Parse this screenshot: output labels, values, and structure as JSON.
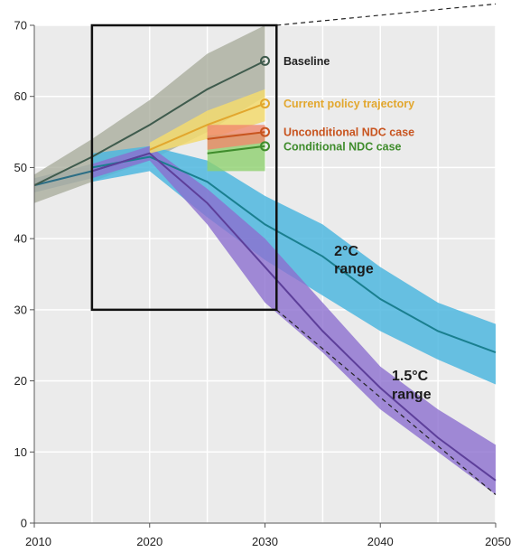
{
  "chart_data": {
    "type": "line",
    "title": "",
    "xlabel": "",
    "ylabel": "",
    "xlim": [
      2010,
      2050
    ],
    "ylim": [
      0,
      70
    ],
    "x_ticks": [
      2010,
      2020,
      2030,
      2040,
      2050
    ],
    "y_ticks": [
      0,
      10,
      20,
      30,
      40,
      50,
      60,
      70
    ],
    "x_grid": [
      2010,
      2015,
      2020,
      2025,
      2030,
      2035,
      2040,
      2045,
      2050
    ],
    "grid": true,
    "colors": {
      "baseline": "#3f5b4d",
      "baseline_band": "#a5aa98",
      "current_policy": "#e2a72e",
      "current_policy_band": "#f3db6e",
      "unconditional": "#c8541f",
      "unconditional_band": "#f08a6e",
      "conditional": "#3f8c2c",
      "conditional_band": "#8fd16f",
      "two_c": "#1a7f8f",
      "two_c_band": "#4fb7df",
      "one_five_c": "#5d3f9a",
      "one_five_c_band": "#8c6fd0",
      "history": "#2c6e85",
      "history_band": "#8fa9c4"
    },
    "historical": {
      "x": [
        2010,
        2015,
        2020
      ],
      "values": [
        47.5,
        49.5,
        52
      ],
      "band_low": [
        46.5,
        48.5,
        51
      ],
      "band_high": [
        48.5,
        50.5,
        53
      ]
    },
    "series": [
      {
        "key": "baseline",
        "name": "Baseline",
        "x": [
          2010,
          2015,
          2020,
          2025,
          2030
        ],
        "values": [
          47.5,
          51.5,
          56,
          61,
          65
        ],
        "band_low": [
          45,
          48,
          51,
          55,
          60
        ],
        "band_high": [
          49,
          54,
          59.5,
          66,
          70
        ],
        "end_marker": true
      },
      {
        "key": "current_policy",
        "name": "Current policy trajectory",
        "x": [
          2020,
          2025,
          2030
        ],
        "values": [
          52.5,
          56,
          59
        ],
        "band_low": [
          52,
          54,
          56.5
        ],
        "band_high": [
          53.5,
          58,
          61
        ],
        "end_marker": true
      },
      {
        "key": "unconditional",
        "name": "Unconditional NDC case",
        "x": [
          2025,
          2030
        ],
        "values": [
          54,
          55
        ],
        "band_low": [
          52.5,
          53.5
        ],
        "band_high": [
          56,
          56
        ],
        "end_marker": true
      },
      {
        "key": "conditional",
        "name": "Conditional NDC case",
        "x": [
          2025,
          2030
        ],
        "values": [
          52,
          53
        ],
        "band_low": [
          49.5,
          49.5
        ],
        "band_high": [
          54.5,
          55
        ],
        "end_marker": true
      },
      {
        "key": "two_c",
        "name": "2°C range",
        "x": [
          2015,
          2020,
          2025,
          2030,
          2035,
          2040,
          2045,
          2050
        ],
        "values": [
          50,
          51.5,
          48,
          42,
          37.5,
          31.5,
          27,
          24
        ],
        "band_low": [
          48,
          49.5,
          43,
          37,
          32,
          27,
          23,
          19.5
        ],
        "band_high": [
          52,
          53,
          51,
          46,
          42,
          36,
          31,
          28
        ],
        "end_marker": false
      },
      {
        "key": "one_five_c",
        "name": "1.5°C range",
        "x": [
          2015,
          2020,
          2025,
          2030,
          2035,
          2040,
          2045,
          2050
        ],
        "values": [
          49.5,
          52,
          45,
          36,
          27,
          19,
          12,
          6
        ],
        "band_low": [
          48.5,
          51,
          42,
          31,
          24,
          16,
          10,
          4
        ],
        "band_high": [
          50.5,
          53,
          47,
          40,
          31,
          22,
          16,
          11
        ],
        "end_marker": false
      }
    ],
    "labels": {
      "baseline": "Baseline",
      "current_policy": "Current policy trajectory",
      "unconditional": "Unconditional NDC case",
      "conditional": "Conditional NDC case",
      "two_c_line1": "2°C",
      "two_c_line2": "range",
      "one_five_c_line1": "1.5°C",
      "one_five_c_line2": "range"
    },
    "zoom_box": {
      "x": [
        2015,
        2031
      ],
      "y": [
        30,
        70
      ]
    },
    "zoom_guides": [
      {
        "from": [
          2031,
          70
        ],
        "to": [
          2050,
          73
        ]
      },
      {
        "from": [
          2031,
          30
        ],
        "to": [
          2050,
          4
        ]
      }
    ]
  }
}
